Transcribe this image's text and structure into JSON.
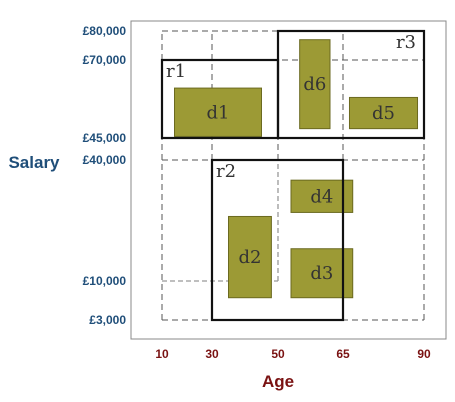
{
  "colors": {
    "y_text": "#1f4e79",
    "x_text": "#7a1212",
    "data_fill": "#9c9a35",
    "data_stroke": "#6b6a20",
    "label_text": "#333333",
    "grid": "#555555",
    "box_stroke": "#111111"
  },
  "axes": {
    "y_title": "Salary",
    "x_title": "Age",
    "y_ticks": [
      {
        "value": 3000,
        "label": "£3,000"
      },
      {
        "value": 10000,
        "label": "£10,000"
      },
      {
        "value": 40000,
        "label": "£40,000"
      },
      {
        "value": 45000,
        "label": "£45,000"
      },
      {
        "value": 70000,
        "label": "£70,000"
      },
      {
        "value": 80000,
        "label": "£80,000"
      }
    ],
    "x_ticks": [
      {
        "value": 10,
        "label": "10"
      },
      {
        "value": 30,
        "label": "30"
      },
      {
        "value": 50,
        "label": "50"
      },
      {
        "value": 65,
        "label": "65"
      },
      {
        "value": 90,
        "label": "90"
      }
    ]
  },
  "regions": [
    {
      "id": "r1",
      "label": "r1",
      "age": [
        10,
        50
      ],
      "salary": [
        45000,
        70000
      ]
    },
    {
      "id": "r2",
      "label": "r2",
      "age": [
        30,
        65
      ],
      "salary": [
        3000,
        40000
      ]
    },
    {
      "id": "r3",
      "label": "r3",
      "age": [
        50,
        90
      ],
      "salary": [
        45000,
        80000
      ]
    }
  ],
  "data_boxes": [
    {
      "id": "d1",
      "label": "d1",
      "age": [
        15,
        45
      ],
      "salary": [
        45500,
        61000
      ]
    },
    {
      "id": "d2",
      "label": "d2",
      "age": [
        35,
        48
      ],
      "salary": [
        7000,
        26000
      ]
    },
    {
      "id": "d3",
      "label": "d3",
      "age": [
        53,
        68
      ],
      "salary": [
        7000,
        18000
      ]
    },
    {
      "id": "d4",
      "label": "d4",
      "age": [
        53,
        68
      ],
      "salary": [
        27000,
        35000
      ]
    },
    {
      "id": "d5",
      "label": "d5",
      "age": [
        67,
        88
      ],
      "salary": [
        48000,
        58000
      ]
    },
    {
      "id": "d6",
      "label": "d6",
      "age": [
        55,
        62
      ],
      "salary": [
        48000,
        77000
      ]
    }
  ],
  "dashed_lines": {
    "horizontal": [
      {
        "salary": 80000,
        "age": [
          10,
          90
        ]
      },
      {
        "salary": 70000,
        "age": [
          10,
          90
        ]
      },
      {
        "salary": 45000,
        "age": [
          10,
          90
        ]
      },
      {
        "salary": 40000,
        "age": [
          10,
          90
        ]
      },
      {
        "salary": 3000,
        "age": [
          10,
          90
        ]
      }
    ],
    "vertical": [
      {
        "age": 10,
        "salary": [
          3000,
          80000
        ]
      },
      {
        "age": 30,
        "salary": [
          3000,
          80000
        ]
      },
      {
        "age": 65,
        "salary": [
          3000,
          80000
        ]
      },
      {
        "age": 90,
        "salary": [
          3000,
          80000
        ]
      },
      {
        "age": 50,
        "salary": [
          40000,
          80000
        ]
      }
    ],
    "light": [
      {
        "kind": "h",
        "salary": 10000,
        "age": [
          10,
          50
        ]
      },
      {
        "kind": "v",
        "age": 50,
        "salary": [
          10000,
          40000
        ]
      }
    ]
  }
}
